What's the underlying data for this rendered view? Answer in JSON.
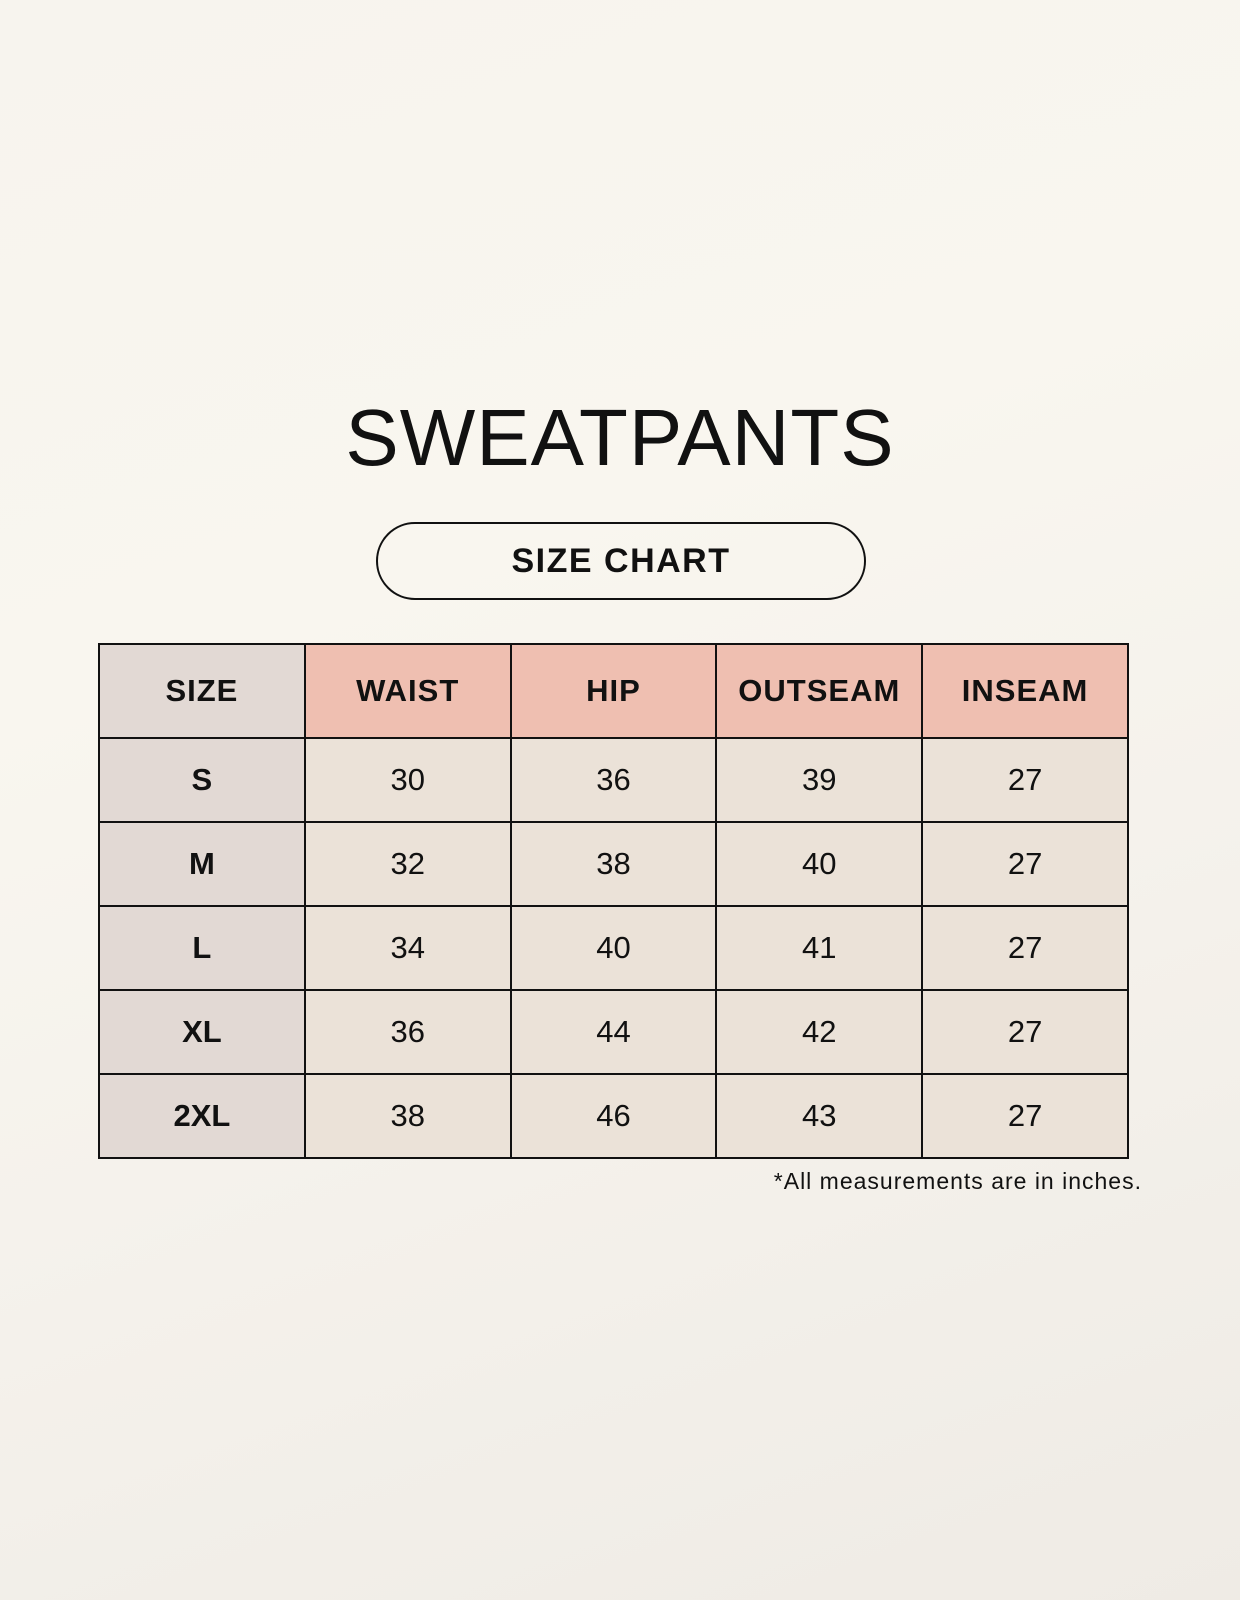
{
  "title": "SWEATPANTS",
  "subtitle": "SIZE CHART",
  "table": {
    "headers": [
      "SIZE",
      "WAIST",
      "HIP",
      "OUTSEAM",
      "INSEAM"
    ],
    "rows": [
      [
        "S",
        "30",
        "36",
        "39",
        "27"
      ],
      [
        "M",
        "32",
        "38",
        "40",
        "27"
      ],
      [
        "L",
        "34",
        "40",
        "41",
        "27"
      ],
      [
        "XL",
        "36",
        "44",
        "42",
        "27"
      ],
      [
        "2XL",
        "38",
        "46",
        "43",
        "27"
      ]
    ]
  },
  "note": "*All measurements are in inches.",
  "colors": {
    "header_accent": "#efbfb1",
    "size_column": "#e2d9d4",
    "cell": "#ebe2d8",
    "background": "#f8f5ee"
  }
}
